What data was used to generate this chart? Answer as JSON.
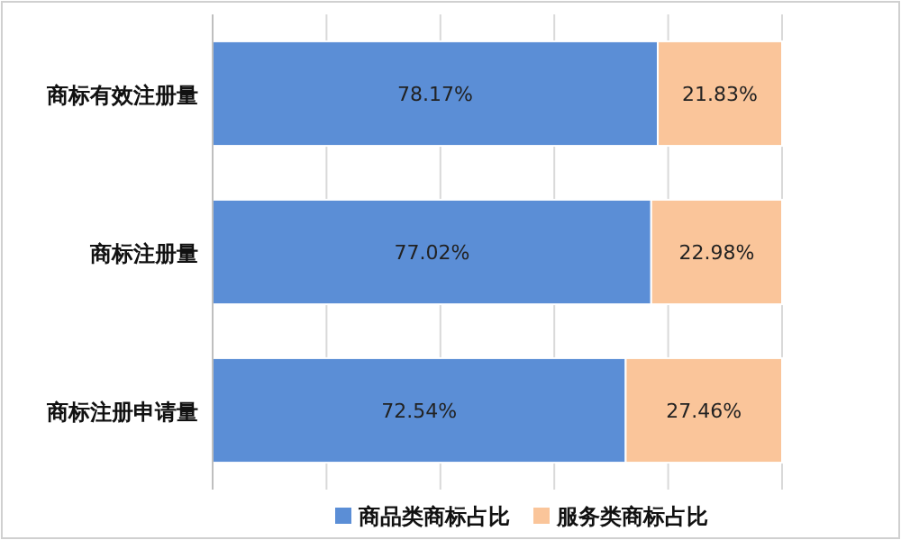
{
  "chart_data": {
    "type": "bar",
    "orientation": "horizontal",
    "stacked": true,
    "categories": [
      "商标有效注册量",
      "商标注册量",
      "商标注册申请量"
    ],
    "series": [
      {
        "name": "商品类商标占比",
        "color": "#5b8ed6",
        "values": [
          78.17,
          77.02,
          72.54
        ],
        "value_labels": [
          "78.17%",
          "77.02%",
          "72.54%"
        ]
      },
      {
        "name": "服务类商标占比",
        "color": "#fac59a",
        "values": [
          21.83,
          22.98,
          27.46
        ],
        "value_labels": [
          "21.83%",
          "22.98%",
          "27.46%"
        ]
      }
    ],
    "xlim": [
      0,
      100
    ],
    "xticks": [
      {
        "value": 0,
        "label": null
      },
      {
        "value": 20,
        "label": null
      },
      {
        "value": 40,
        "label": null
      },
      {
        "value": 60,
        "label": null
      },
      {
        "value": 80,
        "label": null
      },
      {
        "value": 100,
        "label": null
      }
    ],
    "grid": "x",
    "tick_labels": "y",
    "legend": "bottom"
  }
}
